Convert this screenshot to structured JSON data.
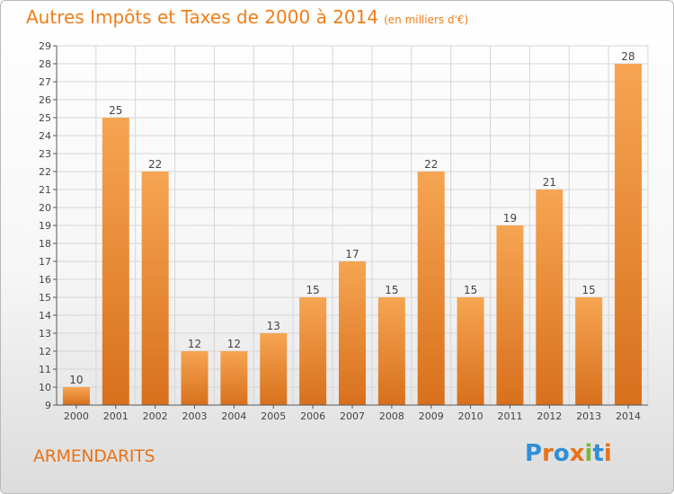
{
  "title": "Autres Impôts et Taxes de 2000 à 2014",
  "unit_note": "(en milliers d'€)",
  "town": "ARMENDARITS",
  "logo": {
    "text": "Proxiti",
    "colors": [
      "#2f8fd8",
      "#e8731a",
      "#2f8fd8",
      "#e8731a",
      "#7ab83a",
      "#2f8fd8",
      "#e8731a"
    ]
  },
  "colors": {
    "bar_top": "#f6a552",
    "bar_bottom": "#d8701c",
    "accent": "#f07e18",
    "grid": "#d6d6d6"
  },
  "chart_data": {
    "type": "bar",
    "categories": [
      "2000",
      "2001",
      "2002",
      "2003",
      "2004",
      "2005",
      "2006",
      "2007",
      "2008",
      "2009",
      "2010",
      "2011",
      "2012",
      "2013",
      "2014"
    ],
    "values": [
      10,
      25,
      22,
      12,
      12,
      13,
      15,
      17,
      15,
      22,
      15,
      19,
      21,
      15,
      28
    ],
    "title": "Autres Impôts et Taxes de 2000 à 2014",
    "xlabel": "",
    "ylabel": "",
    "ylim": [
      9,
      29
    ],
    "yticks": [
      9,
      10,
      11,
      12,
      13,
      14,
      15,
      16,
      17,
      18,
      19,
      20,
      21,
      22,
      23,
      24,
      25,
      26,
      27,
      28,
      29
    ],
    "grid": true,
    "legend": "none"
  }
}
